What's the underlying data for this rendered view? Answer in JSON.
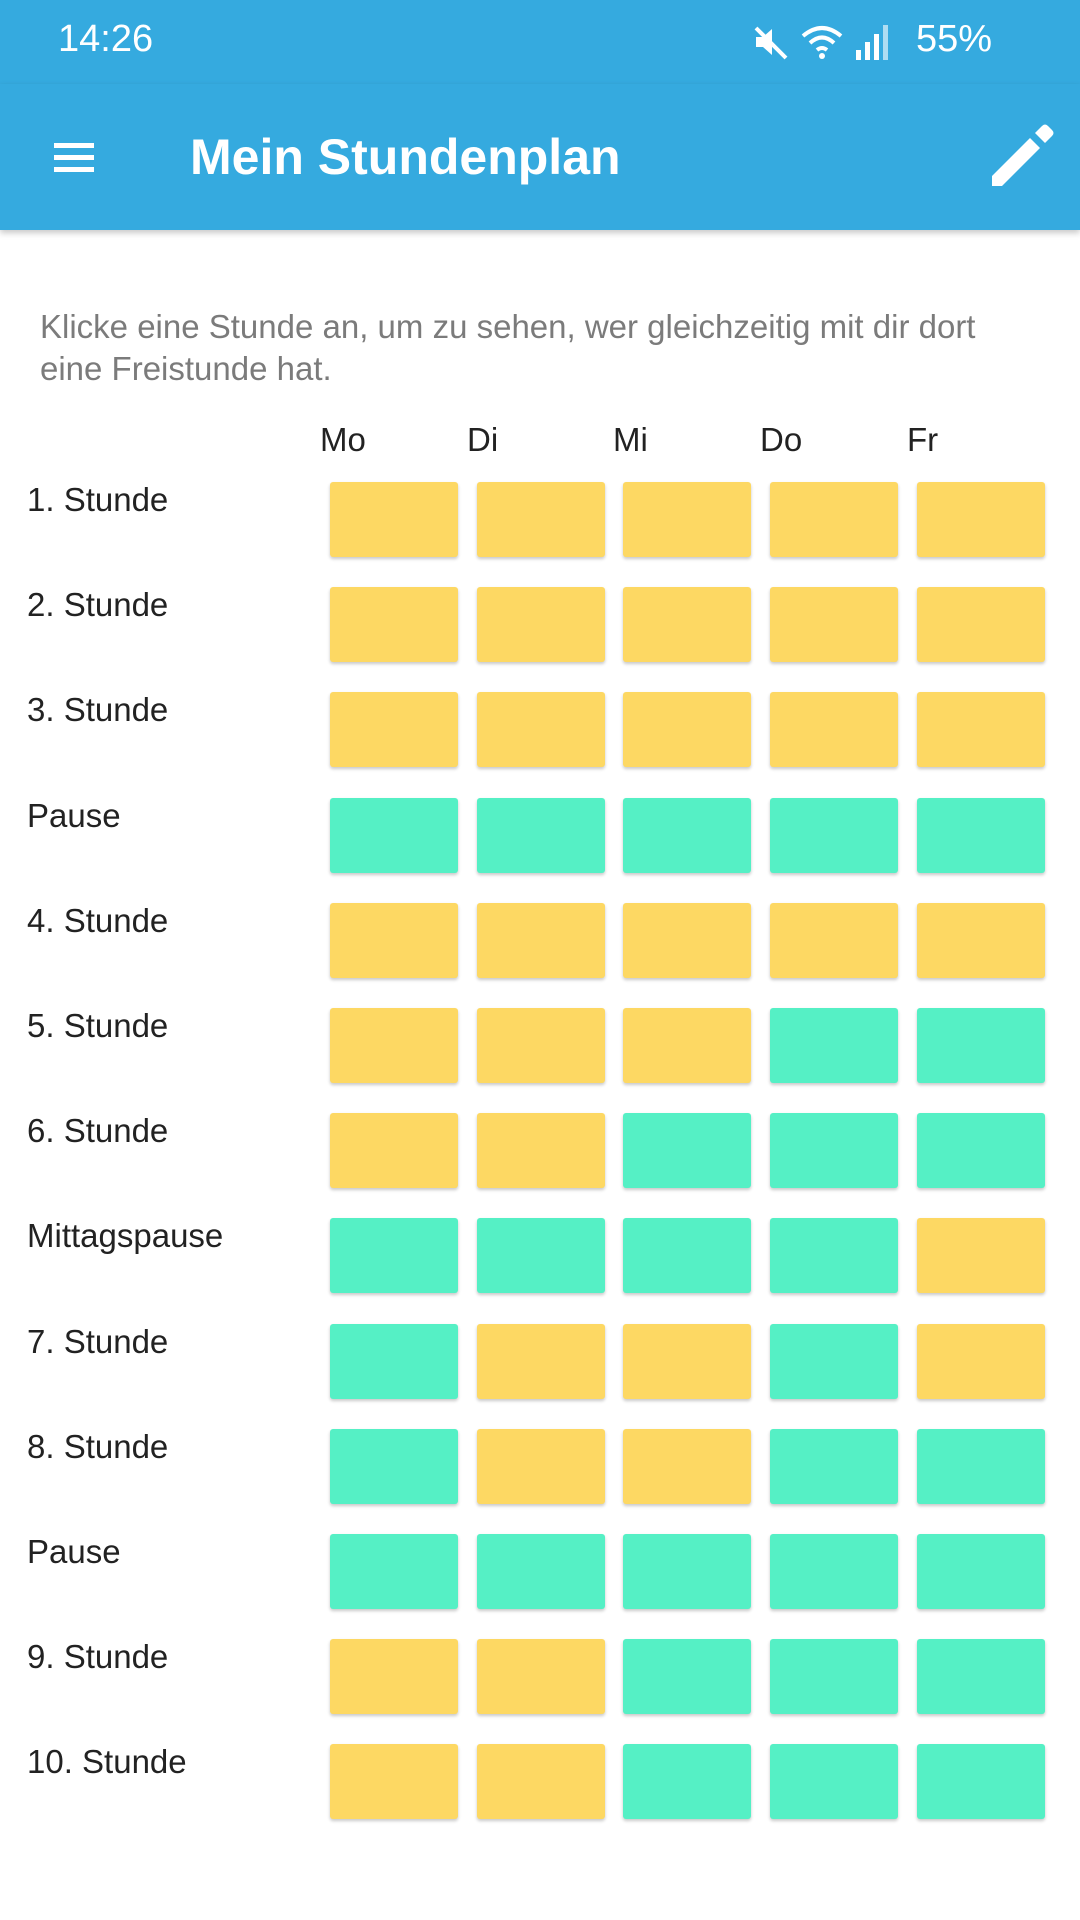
{
  "status_bar": {
    "time": "14:26",
    "battery": "55%",
    "icons": [
      "mute-icon",
      "wifi-icon",
      "signal-icon"
    ]
  },
  "app_bar": {
    "title": "Mein Stundenplan",
    "menu_icon": "menu-icon",
    "edit_icon": "edit-icon"
  },
  "colors": {
    "primary": "#35aadf",
    "occupied": "#fdd863",
    "free": "#55f0c5"
  },
  "instructions": "Klicke eine Stunde an, um zu sehen, wer gleichzeitig mit dir dort eine Freistunde hat.",
  "days": [
    "Mo",
    "Di",
    "Mi",
    "Do",
    "Fr"
  ],
  "rows": [
    {
      "label": "1. Stunde",
      "cells": [
        "occupied",
        "occupied",
        "occupied",
        "occupied",
        "occupied"
      ]
    },
    {
      "label": "2. Stunde",
      "cells": [
        "occupied",
        "occupied",
        "occupied",
        "occupied",
        "occupied"
      ]
    },
    {
      "label": "3. Stunde",
      "cells": [
        "occupied",
        "occupied",
        "occupied",
        "occupied",
        "occupied"
      ]
    },
    {
      "label": "Pause",
      "cells": [
        "free",
        "free",
        "free",
        "free",
        "free"
      ]
    },
    {
      "label": "4. Stunde",
      "cells": [
        "occupied",
        "occupied",
        "occupied",
        "occupied",
        "occupied"
      ]
    },
    {
      "label": "5. Stunde",
      "cells": [
        "occupied",
        "occupied",
        "occupied",
        "free",
        "free"
      ]
    },
    {
      "label": "6. Stunde",
      "cells": [
        "occupied",
        "occupied",
        "free",
        "free",
        "free"
      ]
    },
    {
      "label": "Mittagspause",
      "cells": [
        "free",
        "free",
        "free",
        "free",
        "occupied"
      ]
    },
    {
      "label": "7. Stunde",
      "cells": [
        "free",
        "occupied",
        "occupied",
        "free",
        "occupied"
      ]
    },
    {
      "label": "8. Stunde",
      "cells": [
        "free",
        "occupied",
        "occupied",
        "free",
        "free"
      ]
    },
    {
      "label": "Pause",
      "cells": [
        "free",
        "free",
        "free",
        "free",
        "free"
      ]
    },
    {
      "label": "9. Stunde",
      "cells": [
        "occupied",
        "occupied",
        "free",
        "free",
        "free"
      ]
    },
    {
      "label": "10. Stunde",
      "cells": [
        "occupied",
        "occupied",
        "free",
        "free",
        "free"
      ]
    }
  ]
}
